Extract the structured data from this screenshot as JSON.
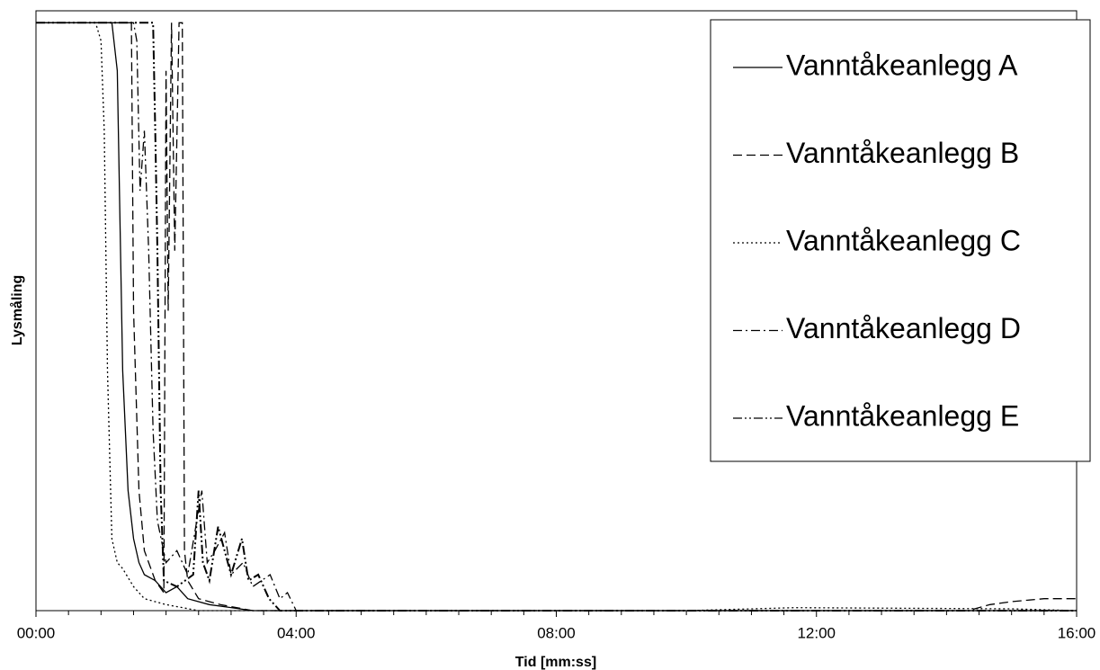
{
  "chart_data": {
    "type": "line",
    "x_label": "Tid [mm:ss]",
    "y_label": "Lysmåling",
    "xlim": [
      0,
      960
    ],
    "ylim": [
      0,
      100
    ],
    "xticks": [
      {
        "value": 0,
        "label": "00:00"
      },
      {
        "value": 240,
        "label": "04:00"
      },
      {
        "value": 480,
        "label": "08:00"
      },
      {
        "value": 720,
        "label": "12:00"
      },
      {
        "value": 960,
        "label": "16:00"
      }
    ],
    "legend": "upper right",
    "series": [
      {
        "name": "Vanntåkeanlegg A",
        "color": "#000000",
        "dash": "solid",
        "x": [
          0,
          70,
          75,
          80,
          85,
          90,
          95,
          100,
          110,
          120,
          130,
          140,
          160,
          200,
          960
        ],
        "values": [
          98,
          98,
          90,
          40,
          20,
          12,
          8,
          6,
          5,
          3,
          4,
          2,
          1,
          0,
          0
        ]
      },
      {
        "name": "Vanntåkeanlegg B",
        "color": "#000000",
        "dash": "dashed",
        "x": [
          0,
          88,
          90,
          95,
          100,
          110,
          118,
          120,
          122,
          125,
          128,
          132,
          135,
          137,
          140,
          150,
          170,
          200,
          860,
          880,
          900,
          930,
          960
        ],
        "values": [
          98,
          98,
          50,
          20,
          10,
          5,
          3,
          90,
          50,
          98,
          60,
          98,
          98,
          10,
          5,
          2,
          1,
          0,
          0,
          1,
          1.5,
          2,
          2
        ]
      },
      {
        "name": "Vanntåkeanlegg C",
        "color": "#000000",
        "dash": "dotted",
        "x": [
          0,
          55,
          60,
          63,
          66,
          70,
          75,
          80,
          90,
          100,
          120,
          150,
          600,
          700,
          900,
          960
        ],
        "values": [
          98,
          98,
          95,
          80,
          40,
          12,
          8,
          7,
          4,
          2,
          1,
          0,
          0,
          0.5,
          0.3,
          0
        ]
      },
      {
        "name": "Vanntåkeanlegg D",
        "color": "#000000",
        "dash": "dashdot",
        "x": [
          0,
          90,
          93,
          96,
          100,
          104,
          108,
          112,
          120,
          130,
          140,
          153,
          158,
          165,
          174,
          180,
          191,
          200,
          216,
          225,
          232,
          240,
          960
        ],
        "values": [
          98,
          98,
          95,
          70,
          80,
          60,
          30,
          15,
          8,
          10,
          6,
          20,
          8,
          10,
          13,
          6,
          8,
          4,
          6,
          2,
          3,
          0,
          0
        ]
      },
      {
        "name": "Vanntåkeanlegg E",
        "color": "#000000",
        "dash": "dashdotdot",
        "x": [
          0,
          108,
          110,
          112,
          115,
          118,
          130,
          145,
          150,
          154,
          160,
          168,
          174,
          180,
          190,
          196,
          205,
          215,
          225,
          960
        ],
        "values": [
          98,
          98,
          80,
          60,
          20,
          5,
          4,
          6,
          20,
          8,
          5,
          14,
          10,
          6,
          12,
          5,
          6,
          2,
          0,
          0
        ]
      }
    ]
  }
}
